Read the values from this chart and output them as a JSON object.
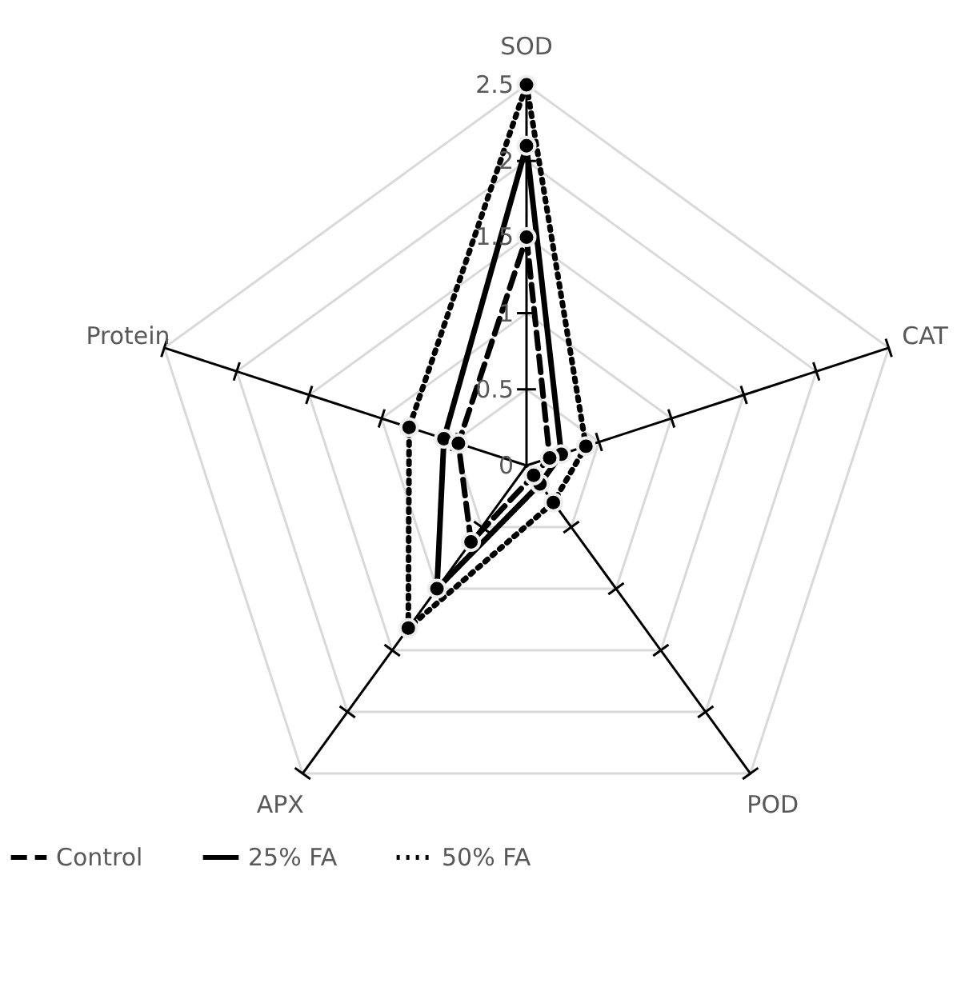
{
  "chart_data": {
    "type": "radar",
    "categories": [
      "SOD",
      "CAT",
      "POD",
      "APX",
      "Protein"
    ],
    "series": [
      {
        "name": "Control",
        "color": "#000000",
        "line_style": "dashed",
        "values": [
          1.5,
          0.16,
          0.08,
          0.62,
          0.47
        ]
      },
      {
        "name": "25% FA",
        "color": "#000000",
        "line_style": "solid",
        "values": [
          2.1,
          0.24,
          0.15,
          1.0,
          0.57
        ]
      },
      {
        "name": "50% FA",
        "color": "#000000",
        "line_style": "dotted",
        "values": [
          2.5,
          0.41,
          0.3,
          1.32,
          0.81
        ]
      }
    ],
    "ylim": [
      0,
      2.5
    ],
    "yticks": [
      0,
      0.5,
      1,
      1.5,
      2,
      2.5
    ],
    "grid": true,
    "marker": "circle",
    "legend": "bottom"
  }
}
